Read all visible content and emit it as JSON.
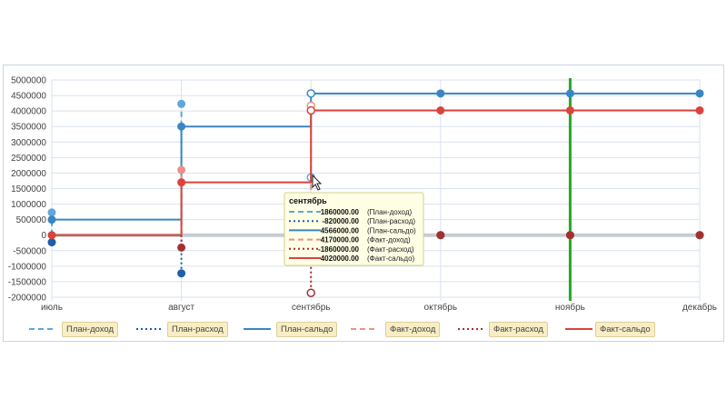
{
  "chart_data": {
    "type": "line",
    "categories": [
      "июль",
      "август",
      "сентябрь",
      "октябрь",
      "ноябрь",
      "декабрь"
    ],
    "ylim": [
      -2000000,
      5000000
    ],
    "yticks": [
      "5000000",
      "4500000",
      "4000000",
      "3500000",
      "3000000",
      "2500000",
      "2000000",
      "1500000",
      "1000000",
      "500000",
      "0",
      "-500000",
      "-1000000",
      "-1500000",
      "-2000000"
    ],
    "grid": true,
    "legend_position": "bottom",
    "series": [
      {
        "name": "План-доход",
        "style": "dashed",
        "color": "#5fa8d8",
        "values": [
          730000,
          4230000,
          1860000,
          0,
          0,
          0
        ]
      },
      {
        "name": "План-расход",
        "style": "dotted",
        "color": "#1f5ea8",
        "values": [
          -230000,
          -1230000,
          -820000,
          0,
          0,
          0
        ]
      },
      {
        "name": "План-сальдо",
        "style": "solid",
        "color": "#3a86c4",
        "values": [
          500000,
          3500000,
          4566000,
          4566000,
          4566000,
          4566000
        ]
      },
      {
        "name": "Факт-доход",
        "style": "dashed",
        "color": "#ef8f8b",
        "values": [
          0,
          2100000,
          4170000,
          0,
          0,
          0
        ]
      },
      {
        "name": "Факт-расход",
        "style": "dotted",
        "color": "#a33030",
        "values": [
          0,
          -400000,
          -1860000,
          0,
          0,
          0
        ]
      },
      {
        "name": "Факт-сальдо",
        "style": "solid",
        "color": "#d8453b",
        "values": [
          0,
          1700000,
          4020000,
          4020000,
          4020000,
          4020000
        ]
      }
    ],
    "marker_line": {
      "category": "ноябрь",
      "color": "#22aa22"
    },
    "tooltip": {
      "title": "сентябрь",
      "rows": [
        {
          "value": "1860000.00",
          "name": "(План-доход)",
          "style": "dashed",
          "color": "#5fa8d8"
        },
        {
          "value": "-820000.00",
          "name": "(План-расход)",
          "style": "dotted",
          "color": "#1f5ea8"
        },
        {
          "value": "4566000.00",
          "name": "(План-сальдо)",
          "style": "solid",
          "color": "#3a86c4"
        },
        {
          "value": "4170000.00",
          "name": "(Факт-доход)",
          "style": "dashed",
          "color": "#ef8f8b"
        },
        {
          "value": "-1860000.00",
          "name": "(Факт-расход)",
          "style": "dotted",
          "color": "#a33030"
        },
        {
          "value": "4020000.00",
          "name": "(Факт-сальдо)",
          "style": "solid",
          "color": "#d8453b"
        }
      ]
    }
  },
  "legend": [
    {
      "label": "План-доход",
      "style": "dashed",
      "color": "#5fa8d8"
    },
    {
      "label": "План-расход",
      "style": "dotted",
      "color": "#1f5ea8"
    },
    {
      "label": "План-сальдо",
      "style": "solid",
      "color": "#3a86c4"
    },
    {
      "label": "Факт-доход",
      "style": "dashed",
      "color": "#ef8f8b"
    },
    {
      "label": "Факт-расход",
      "style": "dotted",
      "color": "#a33030"
    },
    {
      "label": "Факт-сальдо",
      "style": "solid",
      "color": "#d8453b"
    }
  ]
}
